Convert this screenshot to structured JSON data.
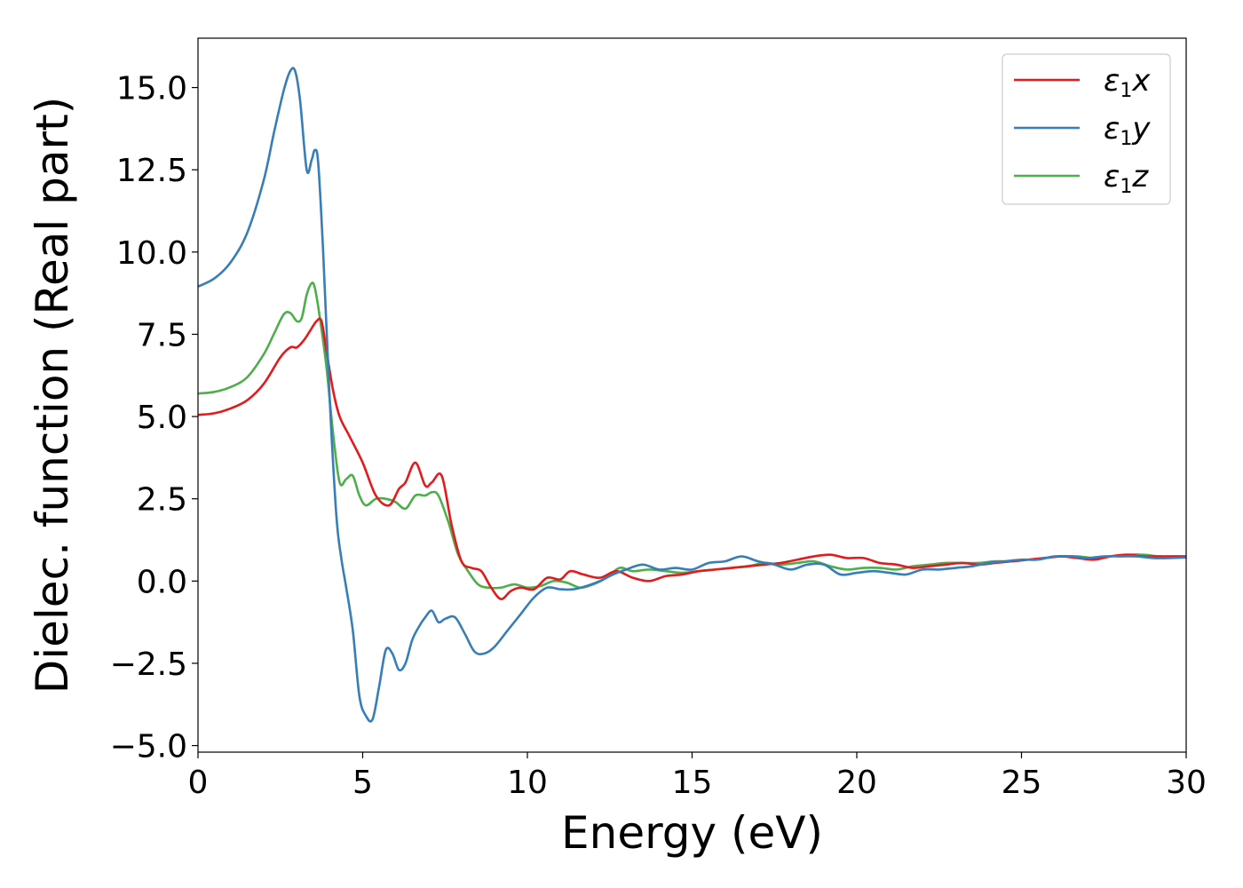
{
  "chart_data": {
    "type": "line",
    "xlabel": "Energy (eV)",
    "ylabel": "Dielec. function (Real part)",
    "xlim": [
      0,
      30
    ],
    "ylim": [
      -5.2,
      16.5
    ],
    "xticks": [
      0,
      5,
      10,
      15,
      20,
      25,
      30
    ],
    "xtick_labels": [
      "0",
      "5",
      "10",
      "15",
      "20",
      "25",
      "30"
    ],
    "yticks": [
      -5.0,
      -2.5,
      0.0,
      2.5,
      5.0,
      7.5,
      10.0,
      12.5,
      15.0
    ],
    "ytick_labels": [
      "−5.0",
      "−2.5",
      "0.0",
      "2.5",
      "5.0",
      "7.5",
      "10.0",
      "12.5",
      "15.0"
    ],
    "grid": false,
    "legend_position": "top-right",
    "series": [
      {
        "name": "ε₁x",
        "label_main": "ε",
        "label_sub": "1",
        "label_tail": "x",
        "color": "#e41a1c",
        "x": [
          0,
          0.5,
          1.0,
          1.5,
          2.0,
          2.5,
          2.8,
          3.0,
          3.2,
          3.4,
          3.6,
          3.75,
          3.9,
          4.1,
          4.3,
          4.6,
          5.0,
          5.4,
          5.8,
          6.1,
          6.3,
          6.6,
          6.9,
          7.1,
          7.4,
          7.7,
          8.0,
          8.3,
          8.6,
          8.9,
          9.2,
          9.5,
          9.8,
          10.2,
          10.6,
          11.0,
          11.3,
          11.7,
          12.2,
          12.7,
          13.2,
          13.7,
          14.2,
          14.7,
          15.2,
          15.7,
          16.2,
          16.7,
          17.2,
          17.7,
          18.2,
          18.7,
          19.2,
          19.7,
          20.2,
          20.7,
          21.2,
          21.7,
          22.2,
          22.7,
          23.2,
          23.7,
          24.2,
          24.7,
          25.2,
          25.7,
          26.2,
          26.7,
          27.2,
          27.7,
          28.2,
          28.7,
          29.2,
          29.7,
          30.0
        ],
        "y": [
          5.05,
          5.1,
          5.25,
          5.5,
          6.0,
          6.8,
          7.1,
          7.1,
          7.3,
          7.6,
          7.9,
          7.9,
          7.0,
          5.8,
          5.0,
          4.4,
          3.6,
          2.6,
          2.3,
          2.8,
          3.0,
          3.6,
          2.9,
          3.0,
          3.2,
          1.7,
          0.6,
          0.4,
          0.3,
          -0.2,
          -0.55,
          -0.3,
          -0.2,
          -0.25,
          0.1,
          0.05,
          0.3,
          0.2,
          0.1,
          0.3,
          0.1,
          0.0,
          0.15,
          0.2,
          0.3,
          0.35,
          0.4,
          0.45,
          0.5,
          0.55,
          0.65,
          0.75,
          0.8,
          0.7,
          0.7,
          0.55,
          0.5,
          0.4,
          0.45,
          0.5,
          0.55,
          0.5,
          0.55,
          0.6,
          0.65,
          0.7,
          0.75,
          0.7,
          0.65,
          0.75,
          0.8,
          0.75,
          0.75,
          0.75,
          0.75
        ]
      },
      {
        "name": "ε₁y",
        "label_main": "ε",
        "label_sub": "1",
        "label_tail": "y",
        "color": "#377eb8",
        "x": [
          0,
          0.5,
          1.0,
          1.5,
          2.0,
          2.3,
          2.6,
          2.8,
          2.95,
          3.1,
          3.3,
          3.45,
          3.55,
          3.65,
          3.8,
          4.0,
          4.2,
          4.35,
          4.5,
          4.7,
          4.9,
          5.1,
          5.3,
          5.5,
          5.7,
          5.9,
          6.1,
          6.3,
          6.5,
          6.7,
          6.9,
          7.1,
          7.3,
          7.5,
          7.8,
          8.1,
          8.4,
          8.7,
          9.0,
          9.4,
          9.8,
          10.2,
          10.6,
          11.0,
          11.4,
          11.8,
          12.2,
          12.6,
          13.0,
          13.5,
          14.0,
          14.5,
          15.0,
          15.5,
          16.0,
          16.5,
          17.0,
          17.5,
          18.0,
          18.5,
          19.0,
          19.5,
          20.0,
          20.5,
          21.0,
          21.5,
          22.0,
          22.5,
          23.0,
          23.5,
          24.0,
          24.5,
          25.0,
          25.5,
          26.0,
          26.5,
          27.0,
          27.5,
          28.0,
          28.5,
          29.0,
          29.5,
          30.0
        ],
        "y": [
          8.95,
          9.2,
          9.7,
          10.6,
          12.2,
          13.6,
          14.9,
          15.5,
          15.5,
          14.6,
          12.5,
          12.8,
          13.1,
          12.7,
          10.0,
          5.5,
          2.0,
          0.7,
          -0.2,
          -1.5,
          -3.5,
          -4.1,
          -4.2,
          -3.2,
          -2.1,
          -2.2,
          -2.7,
          -2.5,
          -1.8,
          -1.4,
          -1.1,
          -0.9,
          -1.25,
          -1.15,
          -1.1,
          -1.6,
          -2.15,
          -2.2,
          -2.0,
          -1.5,
          -1.0,
          -0.5,
          -0.2,
          -0.25,
          -0.25,
          -0.15,
          0.0,
          0.2,
          0.35,
          0.5,
          0.35,
          0.4,
          0.35,
          0.55,
          0.6,
          0.75,
          0.6,
          0.5,
          0.35,
          0.5,
          0.5,
          0.2,
          0.25,
          0.3,
          0.25,
          0.2,
          0.35,
          0.35,
          0.4,
          0.45,
          0.55,
          0.6,
          0.65,
          0.65,
          0.75,
          0.75,
          0.7,
          0.75,
          0.75,
          0.75,
          0.7,
          0.7,
          0.72
        ]
      },
      {
        "name": "ε₁z",
        "label_main": "ε",
        "label_sub": "1",
        "label_tail": "z",
        "color": "#4daf4a",
        "x": [
          0,
          0.5,
          1.0,
          1.5,
          2.0,
          2.3,
          2.6,
          2.8,
          3.0,
          3.15,
          3.3,
          3.45,
          3.55,
          3.7,
          3.9,
          4.1,
          4.3,
          4.5,
          4.7,
          4.9,
          5.1,
          5.4,
          5.7,
          6.0,
          6.3,
          6.6,
          6.9,
          7.1,
          7.3,
          7.6,
          7.9,
          8.2,
          8.5,
          8.8,
          9.2,
          9.6,
          10.0,
          10.4,
          10.8,
          11.2,
          11.6,
          12.0,
          12.4,
          12.8,
          13.2,
          13.7,
          14.2,
          14.7,
          15.2,
          15.7,
          16.2,
          16.7,
          17.2,
          17.7,
          18.2,
          18.7,
          19.2,
          19.7,
          20.2,
          20.7,
          21.2,
          21.7,
          22.2,
          22.7,
          23.2,
          23.7,
          24.2,
          24.7,
          25.2,
          25.7,
          26.2,
          26.7,
          27.2,
          27.7,
          28.2,
          28.7,
          29.2,
          29.7,
          30.0
        ],
        "y": [
          5.7,
          5.75,
          5.9,
          6.2,
          6.9,
          7.5,
          8.1,
          8.15,
          7.9,
          8.0,
          8.7,
          9.05,
          8.9,
          8.0,
          6.5,
          4.5,
          3.0,
          3.1,
          3.2,
          2.6,
          2.3,
          2.5,
          2.5,
          2.4,
          2.2,
          2.6,
          2.6,
          2.7,
          2.6,
          1.8,
          0.8,
          0.3,
          -0.1,
          -0.2,
          -0.2,
          -0.1,
          -0.2,
          -0.15,
          0.0,
          -0.05,
          -0.2,
          -0.1,
          0.1,
          0.4,
          0.3,
          0.35,
          0.3,
          0.25,
          0.3,
          0.35,
          0.4,
          0.45,
          0.55,
          0.5,
          0.55,
          0.6,
          0.45,
          0.35,
          0.4,
          0.4,
          0.35,
          0.45,
          0.5,
          0.55,
          0.55,
          0.55,
          0.6,
          0.6,
          0.65,
          0.7,
          0.75,
          0.75,
          0.7,
          0.75,
          0.8,
          0.8,
          0.75,
          0.75,
          0.75
        ]
      }
    ]
  }
}
